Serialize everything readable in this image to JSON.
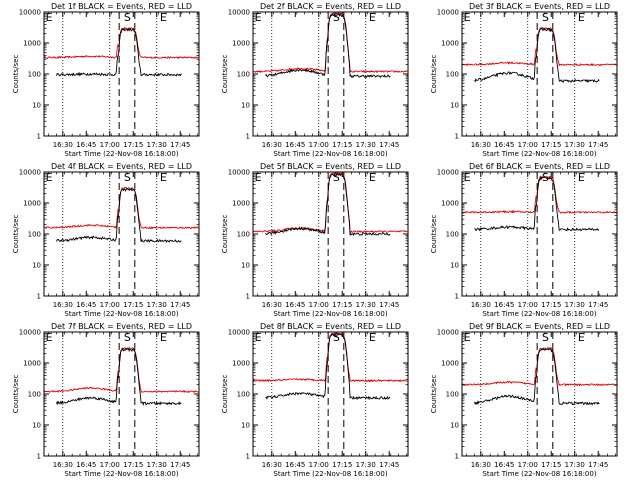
{
  "chart_data": {
    "type": "line",
    "layout": "3x3 grid",
    "y_scale": "log",
    "ylim": [
      1,
      10000
    ],
    "y_tick_labels": [
      "1",
      "10",
      "100",
      "1000",
      "10000"
    ],
    "ylabel": "Counts/sec",
    "xlabel": "Start Time (22-Nov-08 16:18:00)",
    "x_tick_labels": [
      "16:30",
      "16:45",
      "17:00",
      "17:15",
      "17:30",
      "17:45"
    ],
    "x_range_minutes_after_16_18": [
      0,
      99
    ],
    "x_tick_minutes_after_16_18": [
      12,
      27,
      42,
      57,
      72,
      87
    ],
    "dotted_gridlines_x_minutes_after_16_18": [
      12,
      42,
      72
    ],
    "dashed_lines_minutes_after_16_18": [
      48,
      58
    ],
    "interval_markers": [
      {
        "label": "E",
        "x_minutes_after_16_18": 1
      },
      {
        "label": "S",
        "x_minutes_after_16_18": 51
      },
      {
        "label": "E",
        "x_minutes_after_16_18": 74
      }
    ],
    "colors": {
      "events": "#000000",
      "lld": "#dd0000"
    },
    "panels": [
      {
        "title": "Det 1f BLACK = Events, RED = LLD",
        "lld_base": 340,
        "events_base": 95,
        "peak": 3000,
        "lld_hump": 1.1,
        "events_hump": 1.05
      },
      {
        "title": "Det 2f BLACK = Events, RED = LLD",
        "lld_base": 120,
        "events_base": 85,
        "peak": 9000,
        "lld_hump": 1.25,
        "events_hump": 1.6
      },
      {
        "title": "Det 3f BLACK = Events, RED = LLD",
        "lld_base": 200,
        "events_base": 60,
        "peak": 3000,
        "lld_hump": 1.15,
        "events_hump": 1.8
      },
      {
        "title": "Det 4f BLACK = Events, RED = LLD",
        "lld_base": 160,
        "events_base": 60,
        "peak": 3000,
        "lld_hump": 1.2,
        "events_hump": 1.3
      },
      {
        "title": "Det 5f BLACK = Events, RED = LLD",
        "lld_base": 120,
        "events_base": 100,
        "peak": 9000,
        "lld_hump": 1.3,
        "events_hump": 1.5
      },
      {
        "title": "Det 6f BLACK = Events, RED = LLD",
        "lld_base": 500,
        "events_base": 140,
        "peak": 7000,
        "lld_hump": 1.05,
        "events_hump": 1.2
      },
      {
        "title": "Det 7f BLACK = Events, RED = LLD",
        "lld_base": 120,
        "events_base": 50,
        "peak": 3000,
        "lld_hump": 1.3,
        "events_hump": 1.5
      },
      {
        "title": "Det 8f BLACK = Events, RED = LLD",
        "lld_base": 270,
        "events_base": 75,
        "peak": 9000,
        "lld_hump": 1.1,
        "events_hump": 1.4
      },
      {
        "title": "Det 9f BLACK = Events, RED = LLD",
        "lld_base": 200,
        "events_base": 50,
        "peak": 3000,
        "lld_hump": 1.2,
        "events_hump": 1.7
      }
    ]
  }
}
